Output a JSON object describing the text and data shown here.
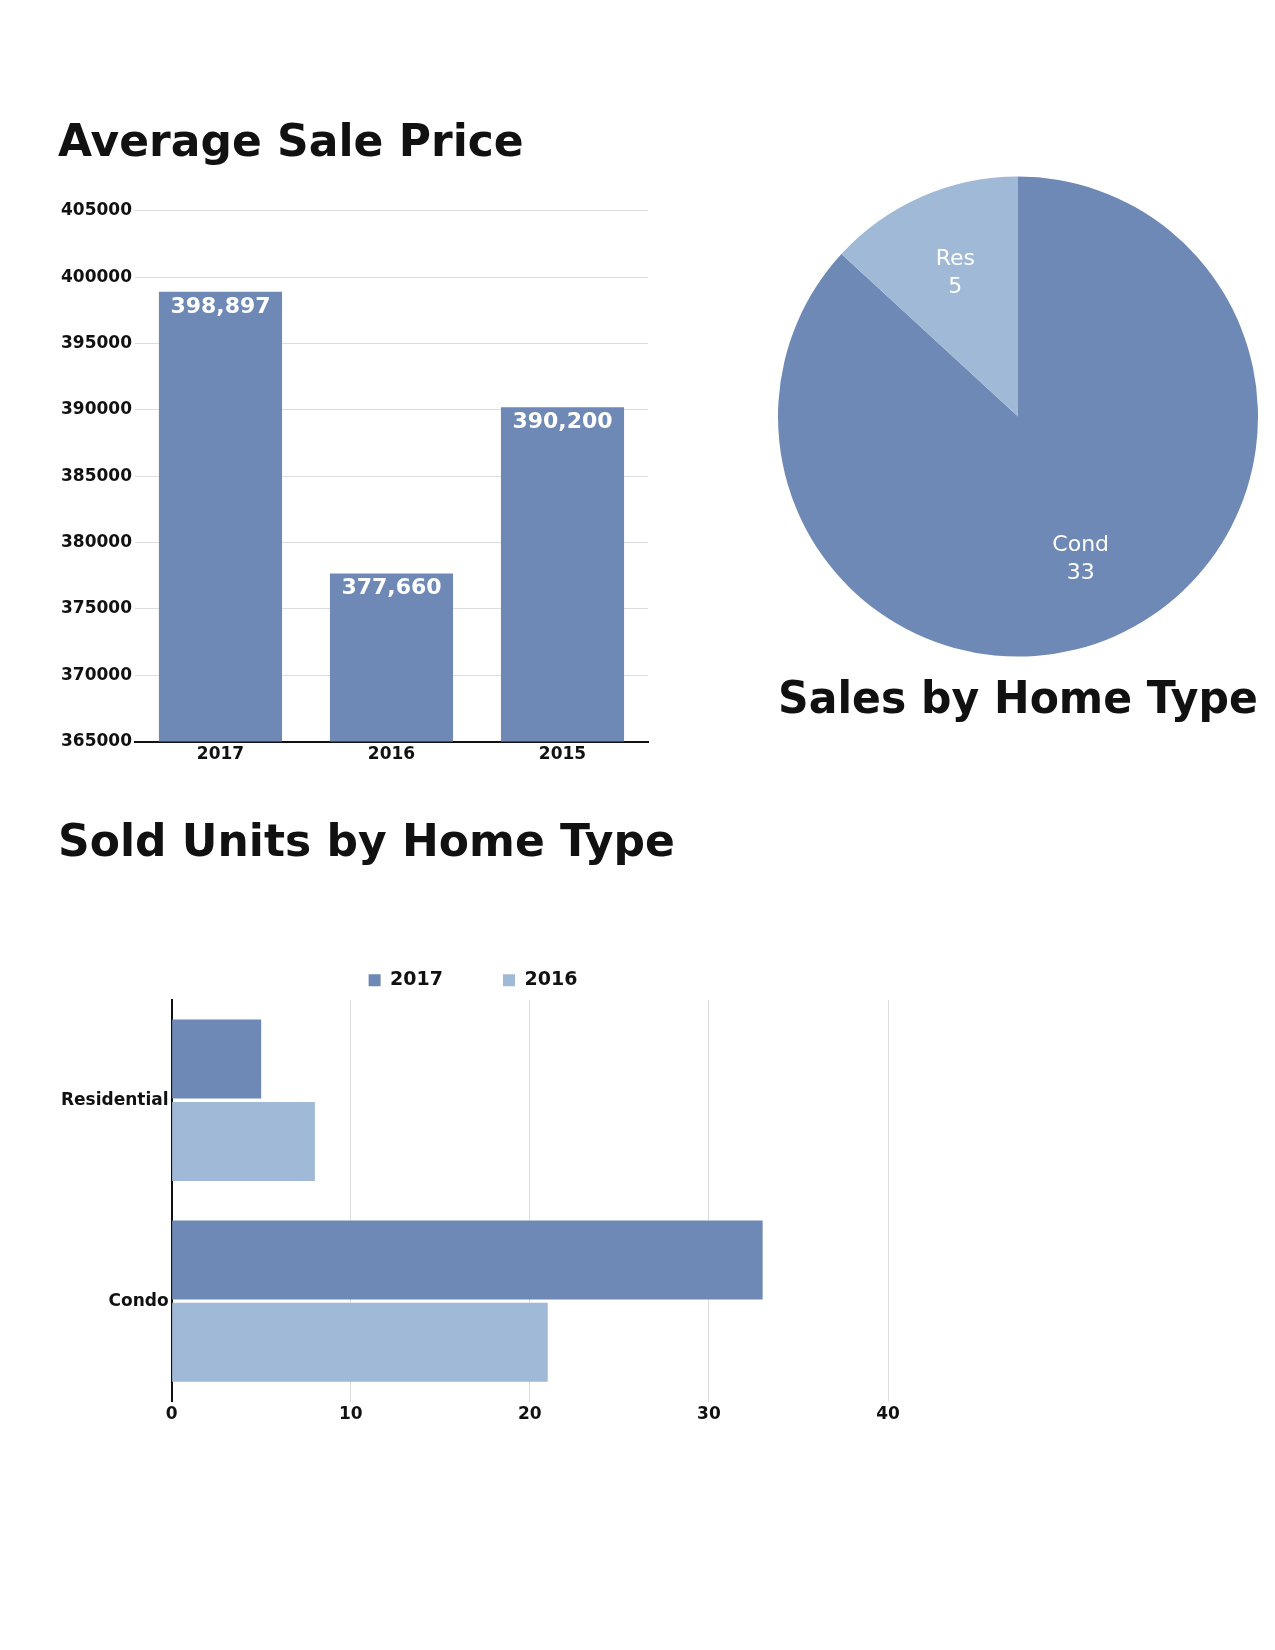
{
  "chart_data": [
    {
      "type": "bar",
      "title": "Average Sale Price",
      "categories": [
        "2017",
        "2016",
        "2015"
      ],
      "values": [
        398897,
        377660,
        390200
      ],
      "color": "#6e89b5",
      "value_labels": [
        "398,897",
        "377,660",
        "390,200"
      ],
      "ylim": [
        365000,
        405000
      ],
      "yticks": [
        365000,
        370000,
        375000,
        380000,
        385000,
        390000,
        395000,
        400000,
        405000
      ],
      "grid": "y"
    },
    {
      "type": "pie",
      "title": "Sales by Home Type",
      "categories": [
        "Cond",
        "Res"
      ],
      "values": [
        33,
        5
      ],
      "colors": [
        "#6e89b5",
        "#a0b9d7"
      ],
      "data_labels": true
    },
    {
      "type": "bar",
      "title": "Sold Units by Home Type",
      "orientation": "horizontal",
      "categories": [
        "Residential",
        "Condo"
      ],
      "series": [
        {
          "name": "2017",
          "color": "#6e89b5",
          "values": [
            5,
            33
          ]
        },
        {
          "name": "2016",
          "color": "#a0b9d7",
          "values": [
            8,
            21
          ]
        }
      ],
      "xlim": [
        0,
        40
      ],
      "xticks": [
        0,
        10,
        20,
        30,
        40
      ],
      "grid": "x",
      "legend": "top"
    }
  ]
}
